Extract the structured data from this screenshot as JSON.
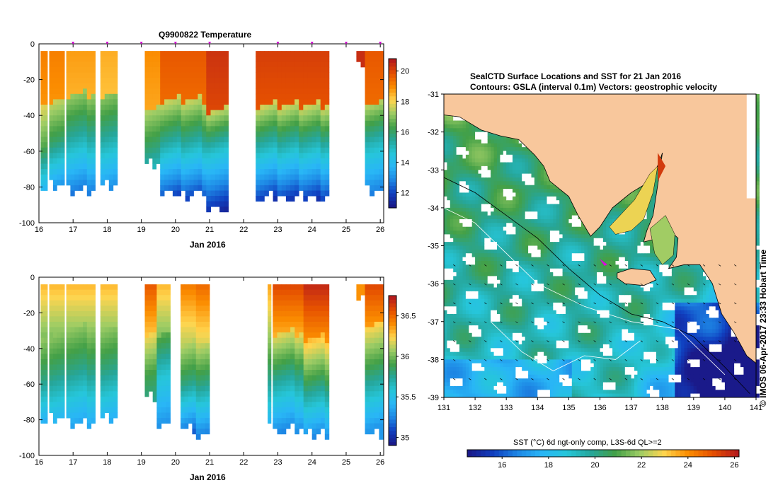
{
  "colors": {
    "land": "#f8c79c",
    "palette": [
      "#1a1a8a",
      "#1040c0",
      "#1e88e5",
      "#29b6f6",
      "#26c6da",
      "#26a69a",
      "#43a047",
      "#9ccc65",
      "#ffd54f",
      "#fb8c00",
      "#e65100",
      "#b71c1c"
    ]
  },
  "chart_data": [
    {
      "type": "heatmap",
      "title": "Q9900822  Temperature",
      "xlabel": "Jan 2016",
      "x_ticks": [
        "16",
        "17",
        "18",
        "19",
        "20",
        "21",
        "22",
        "23",
        "24",
        "25",
        "26"
      ],
      "xlim": [
        16,
        26.1
      ],
      "y_ticks": [
        "0",
        "-20",
        "-40",
        "-60",
        "-80",
        "-100"
      ],
      "ylim": [
        -100,
        0
      ],
      "colorbar_ticks": [
        "20",
        "18",
        "16",
        "14",
        "12"
      ],
      "colorbar_range": [
        11,
        20.8
      ],
      "profile_markers_day": [
        17.0,
        18.0,
        19.0,
        20.0,
        21.0,
        23.0,
        24.0,
        25.0,
        26.0
      ],
      "segments": [
        {
          "x0": 16.05,
          "x1": 16.25,
          "bottom": -79,
          "surface": 19.2,
          "mid": 16.5,
          "deep": 12.5,
          "thermocline": -32
        },
        {
          "x0": 16.3,
          "x1": 16.75,
          "bottom": -79,
          "surface": 19.2,
          "mid": 16.0,
          "deep": 12.0,
          "thermocline": -30
        },
        {
          "x0": 16.8,
          "x1": 17.65,
          "bottom": -81,
          "surface": 18.8,
          "mid": 15.5,
          "deep": 12.3,
          "thermocline": -27
        },
        {
          "x0": 17.8,
          "x1": 18.3,
          "bottom": -79,
          "surface": 18.6,
          "mid": 15.5,
          "deep": 12.5,
          "thermocline": -27
        },
        {
          "x0": 19.1,
          "x1": 19.55,
          "bottom": -65,
          "surface": 19.0,
          "mid": 15.8,
          "deep": 13.0,
          "thermocline": -35
        },
        {
          "x0": 19.55,
          "x1": 20.9,
          "bottom": -83,
          "surface": 19.8,
          "mid": 15.5,
          "deep": 11.6,
          "thermocline": -30
        },
        {
          "x0": 20.9,
          "x1": 21.55,
          "bottom": -91,
          "surface": 20.4,
          "mid": 14.8,
          "deep": 11.3,
          "thermocline": -36
        },
        {
          "x0": 22.35,
          "x1": 24.5,
          "bottom": -85,
          "surface": 20.2,
          "mid": 15.2,
          "deep": 11.2,
          "thermocline": -33
        },
        {
          "x0": 25.3,
          "x1": 25.55,
          "bottom": -11,
          "surface": 20.5,
          "mid": 20.5,
          "deep": 20.5,
          "thermocline": -5
        },
        {
          "x0": 25.55,
          "x1": 26.1,
          "bottom": -81,
          "surface": 19.8,
          "mid": 15.0,
          "deep": 12.0,
          "thermocline": -32
        }
      ]
    },
    {
      "type": "heatmap",
      "title": "",
      "xlabel": "Jan 2016",
      "x_ticks": [
        "16",
        "17",
        "18",
        "19",
        "20",
        "21",
        "22",
        "23",
        "24",
        "25",
        "26"
      ],
      "xlim": [
        16,
        26.1
      ],
      "y_ticks": [
        "0",
        "-20",
        "-40",
        "-60",
        "-80",
        "-100"
      ],
      "ylim": [
        -100,
        0
      ],
      "colorbar_ticks": [
        "36.5",
        "36",
        "35.5",
        "35"
      ],
      "colorbar_range": [
        34.9,
        36.75
      ],
      "segments": [
        {
          "x0": 16.05,
          "x1": 16.25,
          "bottom": -79,
          "surface": 36.3,
          "mid": 35.8,
          "deep": 35.2,
          "thermocline": -32
        },
        {
          "x0": 16.3,
          "x1": 16.75,
          "bottom": -79,
          "surface": 36.3,
          "mid": 35.8,
          "deep": 35.3,
          "thermocline": -30
        },
        {
          "x0": 16.8,
          "x1": 17.65,
          "bottom": -81,
          "surface": 36.3,
          "mid": 35.8,
          "deep": 35.3,
          "thermocline": -27
        },
        {
          "x0": 17.8,
          "x1": 18.3,
          "bottom": -79,
          "surface": 36.3,
          "mid": 35.8,
          "deep": 35.3,
          "thermocline": -27
        },
        {
          "x0": 19.1,
          "x1": 19.45,
          "bottom": -65,
          "surface": 36.55,
          "mid": 35.9,
          "deep": 35.6,
          "thermocline": -30
        },
        {
          "x0": 19.45,
          "x1": 19.85,
          "bottom": -83,
          "surface": 36.3,
          "mid": 35.6,
          "deep": 35.2,
          "thermocline": -30
        },
        {
          "x0": 20.15,
          "x1": 20.6,
          "bottom": -83,
          "surface": 36.45,
          "mid": 35.8,
          "deep": 35.0,
          "thermocline": -35
        },
        {
          "x0": 20.6,
          "x1": 21.0,
          "bottom": -87,
          "surface": 36.5,
          "mid": 35.8,
          "deep": 35.1,
          "thermocline": -35
        },
        {
          "x0": 22.7,
          "x1": 22.8,
          "bottom": -85,
          "surface": 36.35,
          "mid": 35.8,
          "deep": 35.3,
          "thermocline": -30
        },
        {
          "x0": 22.85,
          "x1": 23.75,
          "bottom": -85,
          "surface": 36.6,
          "mid": 35.8,
          "deep": 35.2,
          "thermocline": -30
        },
        {
          "x0": 23.75,
          "x1": 24.5,
          "bottom": -87,
          "surface": 36.7,
          "mid": 35.9,
          "deep": 35.2,
          "thermocline": -33
        },
        {
          "x0": 25.3,
          "x1": 25.55,
          "bottom": -11,
          "surface": 36.4,
          "mid": 36.4,
          "deep": 36.4,
          "thermocline": -5
        },
        {
          "x0": 25.55,
          "x1": 26.1,
          "bottom": -87,
          "surface": 36.6,
          "mid": 35.9,
          "deep": 35.3,
          "thermocline": -25
        }
      ]
    },
    {
      "type": "heatmap",
      "title": "SealCTD Surface Locations and SST for 21 Jan 2016",
      "subtitle": "Contours: GSLA (interval 0.1m) Vectors: geostrophic velocity",
      "x_ticks": [
        "131",
        "132",
        "133",
        "134",
        "135",
        "136",
        "137",
        "138",
        "139",
        "140",
        "141"
      ],
      "xlim": [
        131,
        141
      ],
      "y_ticks": [
        "-31",
        "-32",
        "-33",
        "-34",
        "-35",
        "-36",
        "-37",
        "-38",
        "-39"
      ],
      "ylim": [
        -39,
        -31
      ],
      "colorbar_label": "SST (°C) 6d ngt-only comp, L3S-6d QL>=2",
      "colorbar_ticks": [
        "16",
        "18",
        "20",
        "22",
        "24",
        "26"
      ],
      "colorbar_range": [
        14.5,
        26.2
      ],
      "seal_location": {
        "lon": 136.1,
        "lat": -35.4
      },
      "credit": "© IMOS 06-Apr-2017 23:33 Hobart Time"
    }
  ]
}
